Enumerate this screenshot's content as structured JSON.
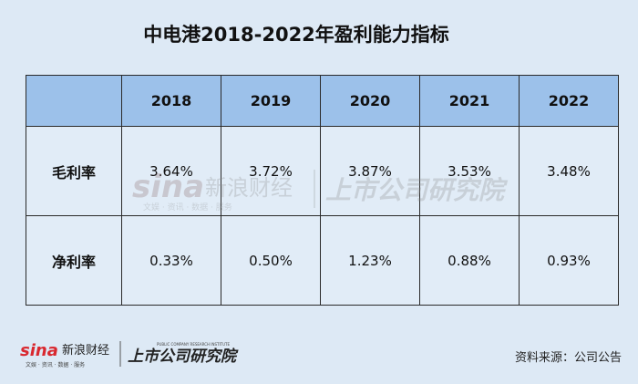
{
  "title": "中电港2018-2022年盈利能力指标",
  "chart_data": {
    "type": "table",
    "title": "中电港2018-2022年盈利能力指标",
    "columns": [
      "2018",
      "2019",
      "2020",
      "2021",
      "2022"
    ],
    "rows": [
      {
        "label": "毛利率",
        "values": [
          "3.64%",
          "3.72%",
          "3.87%",
          "3.53%",
          "3.48%"
        ]
      },
      {
        "label": "净利率",
        "values": [
          "0.33%",
          "0.50%",
          "1.23%",
          "0.88%",
          "0.93%"
        ]
      }
    ]
  },
  "watermark": {
    "brand_logo": "sina",
    "brand_text": "新浪财经",
    "brand_sub": "文娱 · 资讯 · 数据 · 服务",
    "institute_text": "上市公司研究院",
    "institute_sub": "PUBLIC COMPANY RESEARCH INSTITUTE"
  },
  "source": "资料来源：公司公告",
  "colors": {
    "background": "#dde9f5",
    "header_fill": "#9cc1ea",
    "cell_fill": "#e1ecf7",
    "sina_red": "#d9282f",
    "border": "#2a2a2a"
  }
}
